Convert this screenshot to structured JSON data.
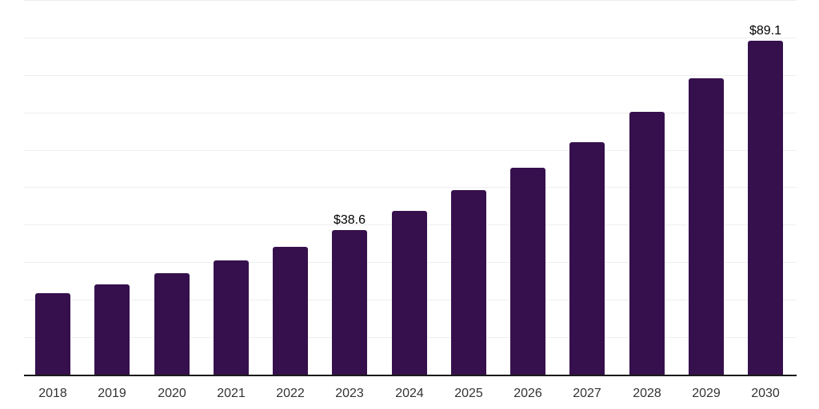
{
  "chart_data": {
    "type": "bar",
    "title": "",
    "xlabel": "",
    "ylabel": "",
    "categories": [
      "2018",
      "2019",
      "2020",
      "2021",
      "2022",
      "2023",
      "2024",
      "2025",
      "2026",
      "2027",
      "2028",
      "2029",
      "2030"
    ],
    "values": [
      21.7,
      24.1,
      27.1,
      30.5,
      34.1,
      38.6,
      43.7,
      49.2,
      55.2,
      62.0,
      70.1,
      79.1,
      89.1
    ],
    "value_labels": [
      {
        "category": "2023",
        "text": "$38.6"
      },
      {
        "category": "2030",
        "text": "$89.1"
      }
    ],
    "ylim": [
      0,
      100
    ],
    "gridline_step": 10,
    "grid": "horizontal-only",
    "y_tick_labels_visible": false,
    "legend": "none",
    "colors": {
      "bar": "#36104D",
      "gridline": "#EFEEF1",
      "axis_line": "#1A1A1A",
      "x_tick_label": "#333333",
      "value_label": "#000000",
      "background": "#FFFFFF"
    }
  }
}
